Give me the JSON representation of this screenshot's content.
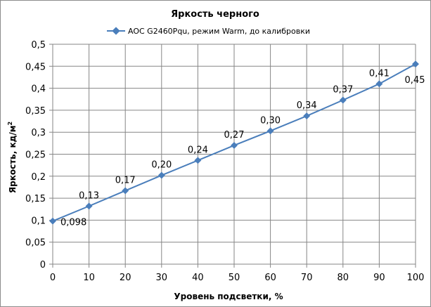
{
  "chart_data": {
    "type": "line",
    "title": "Яркость черного",
    "xlabel": "Уровень подсветки, %",
    "ylabel": "Яркость, кд/м",
    "ylabel_sup": "2",
    "x": [
      0,
      10,
      20,
      30,
      40,
      50,
      60,
      70,
      80,
      90,
      100
    ],
    "xlim": [
      0,
      100
    ],
    "ylim": [
      0,
      0.5
    ],
    "x_ticks": [
      "0",
      "10",
      "20",
      "30",
      "40",
      "50",
      "60",
      "70",
      "80",
      "90",
      "100"
    ],
    "y_ticks": [
      "0",
      "0,05",
      "0,1",
      "0,15",
      "0,2",
      "0,25",
      "0,3",
      "0,35",
      "0,4",
      "0,45",
      "0,5"
    ],
    "grid": "horizontal and vertical",
    "legend_position": "top",
    "series": [
      {
        "name": "AOC G2460Pqu, режим Warm, до калибровки",
        "color": "#4a7ebb",
        "values": [
          0.098,
          0.132,
          0.167,
          0.202,
          0.236,
          0.27,
          0.303,
          0.337,
          0.373,
          0.41,
          0.455
        ],
        "labels": [
          "0,098",
          "0,13",
          "0,17",
          "0,20",
          "0,24",
          "0,27",
          "0,30",
          "0,34",
          "0,37",
          "0,41",
          "0,45"
        ]
      }
    ]
  }
}
